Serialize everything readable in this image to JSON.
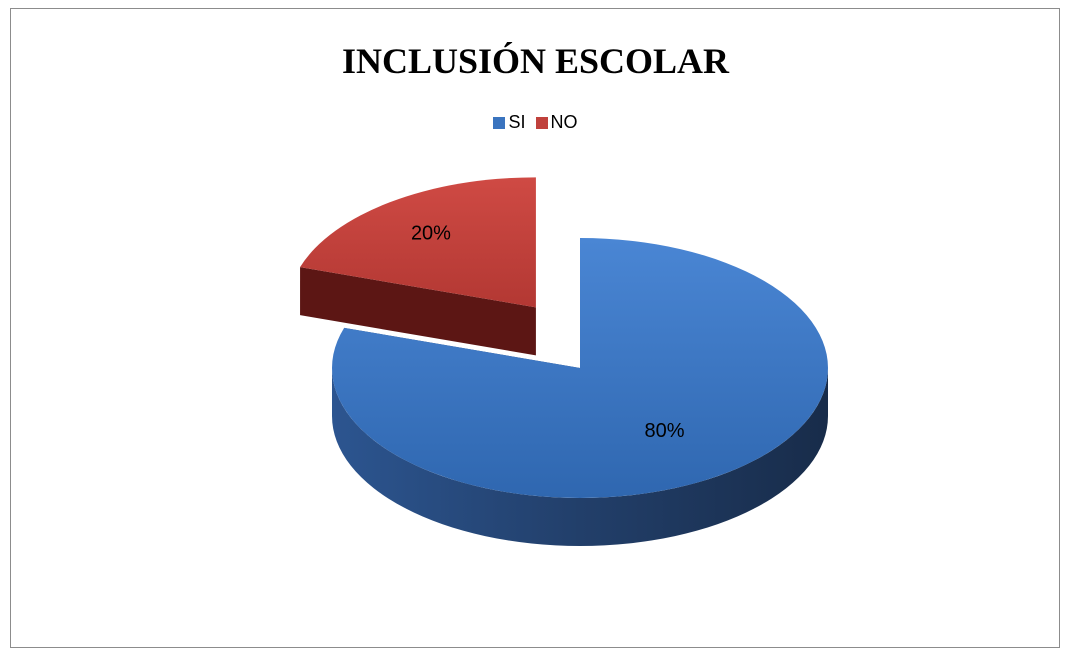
{
  "chart_data": {
    "type": "pie",
    "title": "INCLUSIÓN ESCOLAR",
    "legend_position": "top",
    "slices": [
      {
        "label": "SI",
        "value": 80,
        "data_label": "80%",
        "color": "#3a74bf",
        "side_color": "#213f6b"
      },
      {
        "label": "NO",
        "value": 20,
        "data_label": "20%",
        "color": "#c0413c",
        "side_color": "#5c1614"
      }
    ],
    "exploded": [
      "NO"
    ],
    "three_d": true
  }
}
